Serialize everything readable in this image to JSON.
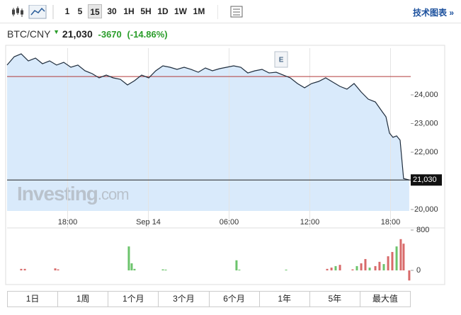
{
  "toolbar": {
    "intervals": [
      "1",
      "5",
      "15",
      "30",
      "1H",
      "5H",
      "1D",
      "1W",
      "1M"
    ],
    "active_index": 2,
    "link": "技术图表 »"
  },
  "header": {
    "symbol": "BTC/CNY",
    "price": "21,030",
    "change": "-3670",
    "change_percent": "(-14.86%)"
  },
  "watermark": {
    "brand": "Investing",
    "domain": ".com"
  },
  "chart_data": [
    {
      "type": "area",
      "color": "#1f2d3d",
      "fill": "#d9eafb",
      "x": [
        13.5,
        14.03,
        14.55,
        15.08,
        15.61,
        16.13,
        16.66,
        17.18,
        17.71,
        18.24,
        18.76,
        19.29,
        19.82,
        20.34,
        20.87,
        21.39,
        21.92,
        22.45,
        22.97,
        23.5,
        24.03,
        24.55,
        25.08,
        25.61,
        26.13,
        26.66,
        27.18,
        27.71,
        28.24,
        28.76,
        29.29,
        29.82,
        30.34,
        30.87,
        31.39,
        31.92,
        32.45,
        32.97,
        33.5,
        34.03,
        34.55,
        35.08,
        35.61,
        36.13,
        36.66,
        37.18,
        37.71,
        38.24,
        38.76,
        39.29,
        39.82,
        40.34,
        40.87,
        41.39,
        41.66,
        41.92,
        42.18,
        42.45,
        42.71,
        42.97,
        43.39
      ],
      "values": [
        25040,
        25330,
        25430,
        25185,
        25284,
        25086,
        25185,
        25040,
        25136,
        24963,
        25040,
        24840,
        24741,
        24593,
        24691,
        24593,
        24543,
        24346,
        24494,
        24691,
        24593,
        24840,
        25012,
        24963,
        24889,
        24963,
        24889,
        24790,
        24938,
        24840,
        24914,
        24963,
        25012,
        24963,
        24765,
        24840,
        24889,
        24765,
        24790,
        24691,
        24593,
        24395,
        24247,
        24395,
        24469,
        24593,
        24444,
        24296,
        24198,
        24395,
        24099,
        23852,
        23753,
        23407,
        23235,
        22667,
        22519,
        22568,
        22420,
        21080,
        21030
      ],
      "xlim": [
        13.5,
        43.5
      ],
      "xticks": [
        {
          "value": 18,
          "label": "18:00"
        },
        {
          "value": 24,
          "label": "Sep 14"
        },
        {
          "value": 30,
          "label": "06:00"
        },
        {
          "value": 36,
          "label": "12:00"
        },
        {
          "value": 42,
          "label": "18:00"
        }
      ],
      "ylim": [
        19950,
        25630
      ],
      "yticks": [
        {
          "value": 20000,
          "label": "20,000"
        },
        {
          "value": 21000,
          "label": "21,000"
        },
        {
          "value": 22000,
          "label": "22,000"
        },
        {
          "value": 23000,
          "label": "23,000"
        },
        {
          "value": 24000,
          "label": "24,000"
        }
      ],
      "reference_line": 24640,
      "reference_color": "#b03a3a",
      "last_price": {
        "value": 21030,
        "label": "21,030"
      },
      "annotations": [
        {
          "x": 33.87,
          "label": "E"
        }
      ],
      "grid": true
    },
    {
      "type": "bar",
      "x": [
        14.55,
        14.82,
        17.08,
        17.29,
        22.55,
        22.76,
        22.97,
        25.08,
        25.29,
        30.55,
        30.76,
        34.24,
        37.29,
        37.61,
        37.92,
        38.24,
        39.18,
        39.5,
        39.82,
        40.13,
        40.45,
        40.87,
        41.18,
        41.5,
        41.82,
        42.13,
        42.45,
        42.76,
        42.97,
        43.39
      ],
      "values": [
        30,
        30,
        40,
        20,
        475,
        140,
        30,
        20,
        15,
        200,
        15,
        15,
        30,
        55,
        85,
        110,
        20,
        85,
        140,
        225,
        55,
        85,
        170,
        125,
        280,
        365,
        475,
        620,
        530,
        -200
      ],
      "colors": [
        "#d86a6a",
        "#d86a6a",
        "#d86a6a",
        "#d86a6a",
        "#6cc46c",
        "#6cc46c",
        "#6cc46c",
        "#6cc46c",
        "#6cc46c",
        "#6cc46c",
        "#6cc46c",
        "#6cc46c",
        "#d86a6a",
        "#d86a6a",
        "#6cc46c",
        "#d86a6a",
        "#d86a6a",
        "#6cc46c",
        "#d86a6a",
        "#d86a6a",
        "#6cc46c",
        "#d86a6a",
        "#d86a6a",
        "#6cc46c",
        "#d86a6a",
        "#d86a6a",
        "#6cc46c",
        "#d86a6a",
        "#d86a6a",
        "#d86a6a"
      ],
      "xlim": [
        13.5,
        43.5
      ],
      "ylim": [
        -225,
        898
      ],
      "yticks": [
        0,
        800
      ]
    }
  ],
  "range_buttons": [
    "1日",
    "1周",
    "1个月",
    "3个月",
    "6个月",
    "1年",
    "5年",
    "最大值"
  ]
}
